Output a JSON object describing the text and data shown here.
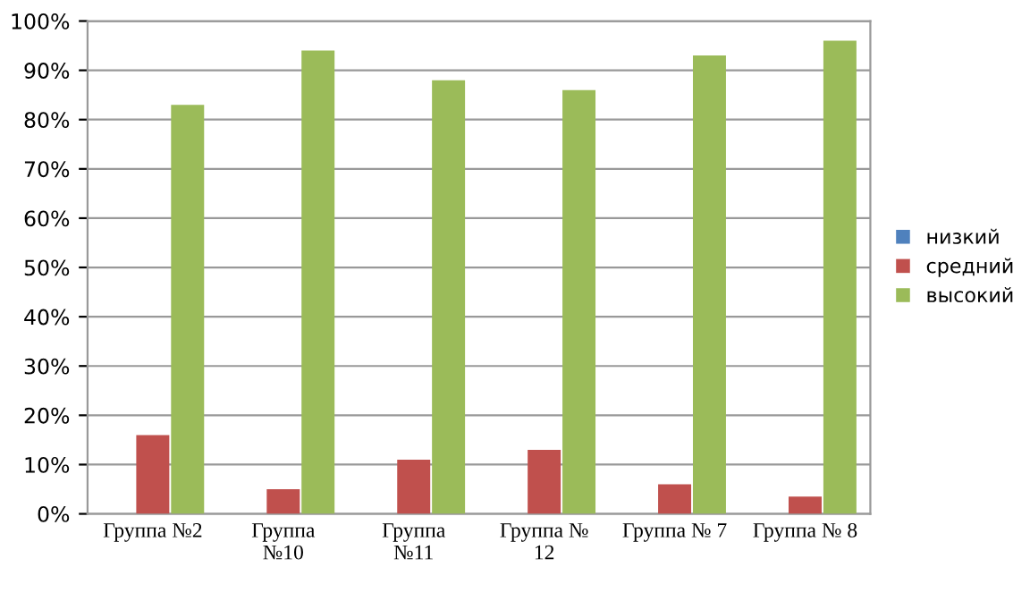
{
  "chart_data": {
    "type": "bar",
    "categories": [
      "Группа №2",
      "Группа\n№10",
      "Группа\n№11",
      "Группа №\n12",
      "Группа № 7",
      "Группа № 8"
    ],
    "series": [
      {
        "name": "низкий",
        "color": "#4f81bd",
        "values": [
          0,
          0,
          0,
          0,
          0,
          0
        ]
      },
      {
        "name": "средний",
        "color": "#c0504d",
        "values": [
          16,
          5,
          11,
          13,
          6,
          3.5
        ]
      },
      {
        "name": "высокий",
        "color": "#9bbb59",
        "values": [
          83,
          94,
          88,
          86,
          93,
          96
        ]
      }
    ],
    "ylim": [
      0,
      100
    ],
    "yticks": [
      {
        "value": 0,
        "label": "0%"
      },
      {
        "value": 10,
        "label": "10%"
      },
      {
        "value": 20,
        "label": "20%"
      },
      {
        "value": 30,
        "label": "30%"
      },
      {
        "value": 40,
        "label": "40%"
      },
      {
        "value": 50,
        "label": "50%"
      },
      {
        "value": 60,
        "label": "60%"
      },
      {
        "value": 70,
        "label": "70%"
      },
      {
        "value": 80,
        "label": "80%"
      },
      {
        "value": 90,
        "label": "90%"
      },
      {
        "value": 100,
        "label": "100%"
      }
    ],
    "grid": "y",
    "legend": "right"
  }
}
